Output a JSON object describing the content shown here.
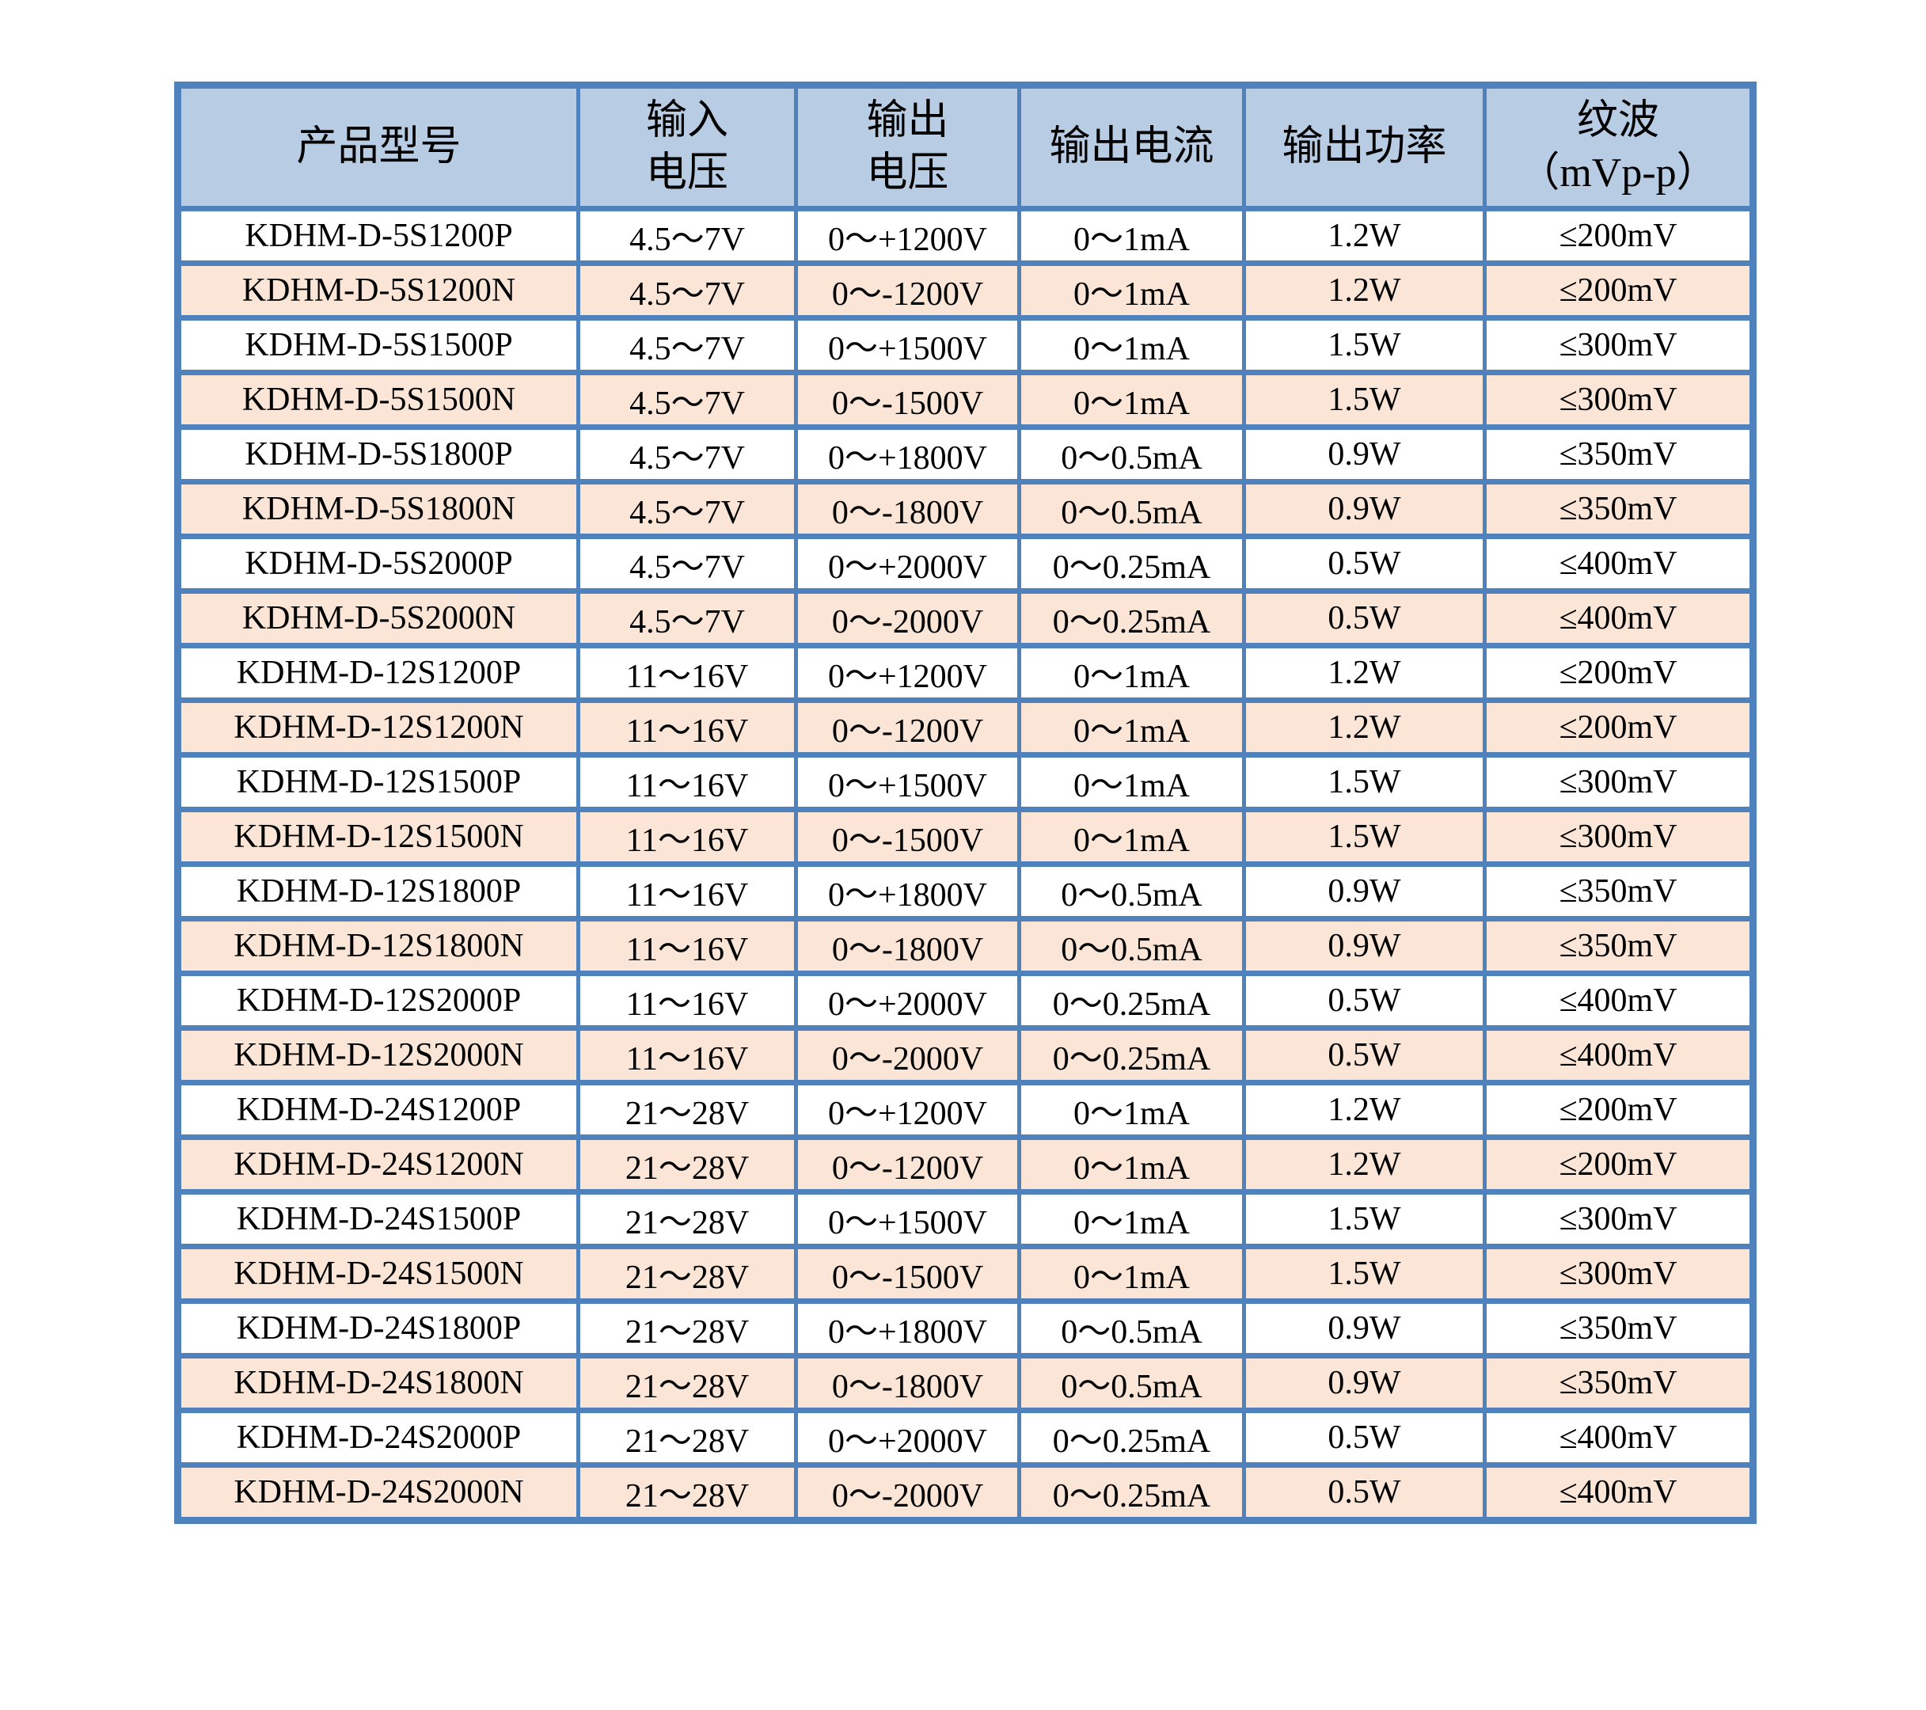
{
  "colors": {
    "border": "#4f81bd",
    "header_fill": "#b8cce4",
    "row_fill": "#ffffff",
    "row_alt_fill": "#fbe5d6",
    "text": "#000000"
  },
  "table": {
    "columns": [
      {
        "id": "model",
        "label_lines": [
          "产品型号"
        ]
      },
      {
        "id": "input-voltage",
        "label_lines": [
          "输入",
          "电压"
        ]
      },
      {
        "id": "output-voltage",
        "label_lines": [
          "输出",
          "电压"
        ]
      },
      {
        "id": "output-current",
        "label_lines": [
          "输出电流"
        ]
      },
      {
        "id": "output-power",
        "label_lines": [
          "输出功率"
        ]
      },
      {
        "id": "ripple",
        "label_lines": [
          "纹波",
          "（mVp-p）"
        ]
      }
    ],
    "rows": [
      [
        "KDHM-D-5S1200P",
        "4.5～7V",
        "0～+1200V",
        "0～1mA",
        "1.2W",
        "≤200mV"
      ],
      [
        "KDHM-D-5S1200N",
        "4.5～7V",
        "0～-1200V",
        "0～1mA",
        "1.2W",
        "≤200mV"
      ],
      [
        "KDHM-D-5S1500P",
        "4.5～7V",
        "0～+1500V",
        "0～1mA",
        "1.5W",
        "≤300mV"
      ],
      [
        "KDHM-D-5S1500N",
        "4.5～7V",
        "0～-1500V",
        "0～1mA",
        "1.5W",
        "≤300mV"
      ],
      [
        "KDHM-D-5S1800P",
        "4.5～7V",
        "0～+1800V",
        "0～0.5mA",
        "0.9W",
        "≤350mV"
      ],
      [
        "KDHM-D-5S1800N",
        "4.5～7V",
        "0～-1800V",
        "0～0.5mA",
        "0.9W",
        "≤350mV"
      ],
      [
        "KDHM-D-5S2000P",
        "4.5～7V",
        "0～+2000V",
        "0～0.25mA",
        "0.5W",
        "≤400mV"
      ],
      [
        "KDHM-D-5S2000N",
        "4.5～7V",
        "0～-2000V",
        "0～0.25mA",
        "0.5W",
        "≤400mV"
      ],
      [
        "KDHM-D-12S1200P",
        "11～16V",
        "0～+1200V",
        "0～1mA",
        "1.2W",
        "≤200mV"
      ],
      [
        "KDHM-D-12S1200N",
        "11～16V",
        "0～-1200V",
        "0～1mA",
        "1.2W",
        "≤200mV"
      ],
      [
        "KDHM-D-12S1500P",
        "11～16V",
        "0～+1500V",
        "0～1mA",
        "1.5W",
        "≤300mV"
      ],
      [
        "KDHM-D-12S1500N",
        "11～16V",
        "0～-1500V",
        "0～1mA",
        "1.5W",
        "≤300mV"
      ],
      [
        "KDHM-D-12S1800P",
        "11～16V",
        "0～+1800V",
        "0～0.5mA",
        "0.9W",
        "≤350mV"
      ],
      [
        "KDHM-D-12S1800N",
        "11～16V",
        "0～-1800V",
        "0～0.5mA",
        "0.9W",
        "≤350mV"
      ],
      [
        "KDHM-D-12S2000P",
        "11～16V",
        "0～+2000V",
        "0～0.25mA",
        "0.5W",
        "≤400mV"
      ],
      [
        "KDHM-D-12S2000N",
        "11～16V",
        "0～-2000V",
        "0～0.25mA",
        "0.5W",
        "≤400mV"
      ],
      [
        "KDHM-D-24S1200P",
        "21～28V",
        "0～+1200V",
        "0～1mA",
        "1.2W",
        "≤200mV"
      ],
      [
        "KDHM-D-24S1200N",
        "21～28V",
        "0～-1200V",
        "0～1mA",
        "1.2W",
        "≤200mV"
      ],
      [
        "KDHM-D-24S1500P",
        "21～28V",
        "0～+1500V",
        "0～1mA",
        "1.5W",
        "≤300mV"
      ],
      [
        "KDHM-D-24S1500N",
        "21～28V",
        "0～-1500V",
        "0～1mA",
        "1.5W",
        "≤300mV"
      ],
      [
        "KDHM-D-24S1800P",
        "21～28V",
        "0～+1800V",
        "0～0.5mA",
        "0.9W",
        "≤350mV"
      ],
      [
        "KDHM-D-24S1800N",
        "21～28V",
        "0～-1800V",
        "0～0.5mA",
        "0.9W",
        "≤350mV"
      ],
      [
        "KDHM-D-24S2000P",
        "21～28V",
        "0～+2000V",
        "0～0.25mA",
        "0.5W",
        "≤400mV"
      ],
      [
        "KDHM-D-24S2000N",
        "21～28V",
        "0～-2000V",
        "0～0.25mA",
        "0.5W",
        "≤400mV"
      ]
    ]
  }
}
